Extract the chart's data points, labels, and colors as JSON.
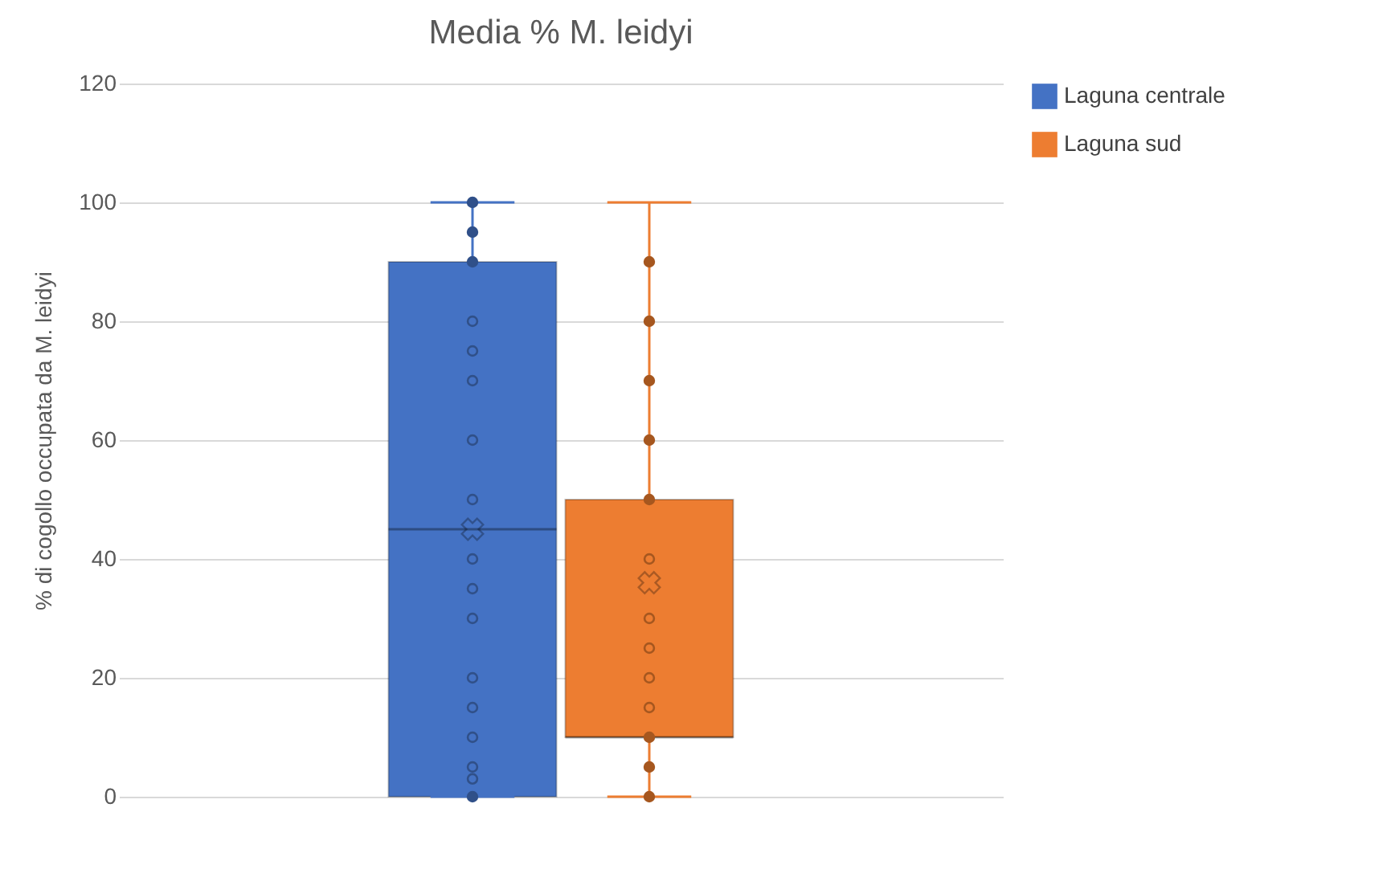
{
  "chart_data": {
    "type": "box",
    "title": "Media % M. leidyi",
    "ylabel": "% di cogollo occupata da M. leidyi",
    "categories": [
      null
    ],
    "ylim": [
      0,
      120
    ],
    "yticks": [
      0,
      20,
      40,
      60,
      80,
      100,
      120
    ],
    "grid": "y",
    "legend": "right",
    "series": [
      {
        "name": "Laguna centrale",
        "color": "#4472c4",
        "boxes": [
          {
            "low": 0,
            "q1": 0,
            "median": 45,
            "q3": 90,
            "high": 100,
            "mean": 45
          }
        ]
      },
      {
        "name": "Laguna sud",
        "color": "#ed7d31",
        "boxes": [
          {
            "low": 0,
            "q1": 10,
            "median": 10,
            "q3": 50,
            "high": 100,
            "mean": 36
          }
        ]
      },
      {
        "type": "scatter",
        "color": "#305089",
        "marker": "circle",
        "x": [
          null,
          null,
          null,
          null,
          null,
          null,
          null,
          null,
          null,
          null,
          null,
          null,
          null,
          null,
          null,
          null,
          null
        ],
        "values": [
          100,
          95,
          90,
          80,
          75,
          70,
          60,
          50,
          40,
          35,
          30,
          20,
          15,
          10,
          5,
          3,
          0
        ]
      },
      {
        "type": "scatter",
        "color": "#a6571f",
        "marker": "circle",
        "x": [
          null,
          null,
          null,
          null,
          null,
          null,
          null,
          null,
          null,
          null,
          null,
          null,
          null
        ],
        "values": [
          90,
          80,
          70,
          60,
          50,
          40,
          30,
          25,
          20,
          15,
          10,
          5,
          0
        ]
      }
    ]
  }
}
